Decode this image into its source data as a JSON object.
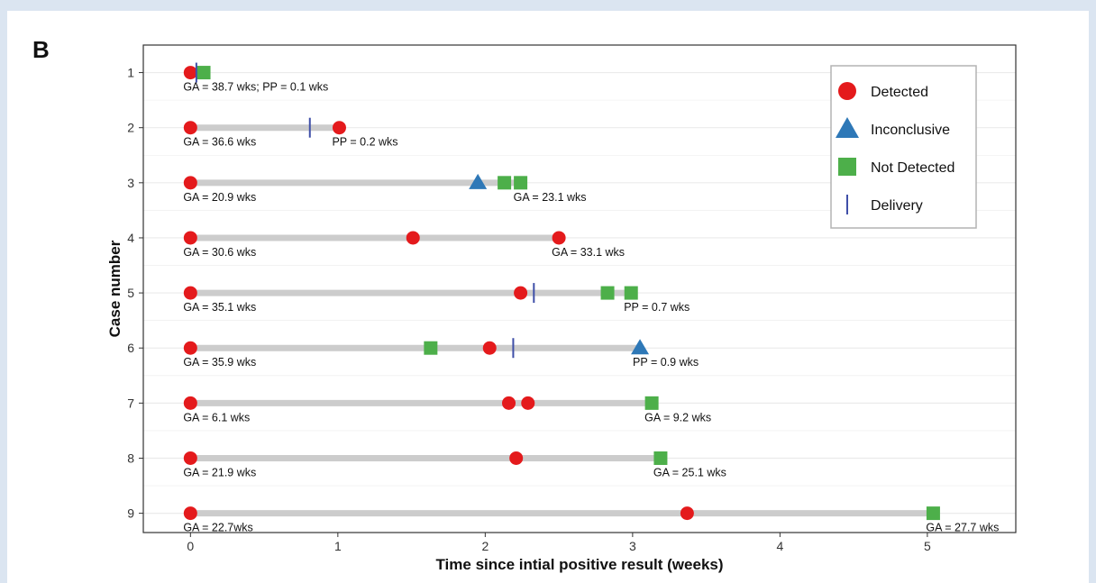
{
  "panel_label": "B",
  "chart_data": {
    "type": "scatter",
    "title": "",
    "xlabel": "Time since intial positive result (weeks)",
    "ylabel": "Case number",
    "xlim": [
      -0.32,
      5.6
    ],
    "ylim": [
      0.5,
      9.35
    ],
    "x_ticks": [
      0,
      1,
      2,
      3,
      4,
      5
    ],
    "grid": true,
    "legend_position": "top-right",
    "legend": [
      {
        "key": "Detected",
        "label": "Detected",
        "shape": "circle",
        "color": "#e41a1c"
      },
      {
        "key": "Inconclusive",
        "label": "Inconclusive",
        "shape": "triangle",
        "color": "#2e78b7"
      },
      {
        "key": "NotDetected",
        "label": "Not Detected",
        "shape": "square",
        "color": "#4daf4a"
      },
      {
        "key": "Delivery",
        "label": "Delivery",
        "shape": "vline",
        "color": "#3f4fa8"
      }
    ],
    "colors": {
      "track": "#cccccc",
      "grid": "#ebebeb",
      "axis": "#333333"
    },
    "cases": [
      {
        "case": "1",
        "span": [
          0,
          0.09
        ],
        "points": [
          {
            "x": 0,
            "result": "Detected"
          },
          {
            "x": 0.09,
            "result": "NotDetected"
          }
        ],
        "delivery": 0.04,
        "start_label": "GA = 38.7 wks;  PP = 0.1 wks",
        "end_label": ""
      },
      {
        "case": "2",
        "span": [
          0,
          1.01
        ],
        "points": [
          {
            "x": 0,
            "result": "Detected"
          },
          {
            "x": 1.01,
            "result": "Detected"
          }
        ],
        "delivery": 0.81,
        "start_label": "GA = 36.6 wks",
        "end_label": "PP = 0.2 wks"
      },
      {
        "case": "3",
        "span": [
          0,
          2.24
        ],
        "points": [
          {
            "x": 0,
            "result": "Detected"
          },
          {
            "x": 1.95,
            "result": "Inconclusive"
          },
          {
            "x": 2.13,
            "result": "NotDetected"
          },
          {
            "x": 2.24,
            "result": "NotDetected"
          }
        ],
        "delivery": null,
        "start_label": "GA = 20.9 wks",
        "end_label": "GA = 23.1 wks"
      },
      {
        "case": "4",
        "span": [
          0,
          2.5
        ],
        "points": [
          {
            "x": 0,
            "result": "Detected"
          },
          {
            "x": 1.51,
            "result": "Detected"
          },
          {
            "x": 2.5,
            "result": "Detected"
          }
        ],
        "delivery": null,
        "start_label": "GA = 30.6 wks",
        "end_label": "GA = 33.1 wks"
      },
      {
        "case": "5",
        "span": [
          0,
          2.99
        ],
        "points": [
          {
            "x": 0,
            "result": "Detected"
          },
          {
            "x": 2.24,
            "result": "Detected"
          },
          {
            "x": 2.83,
            "result": "NotDetected"
          },
          {
            "x": 2.99,
            "result": "NotDetected"
          }
        ],
        "delivery": 2.33,
        "start_label": "GA = 35.1 wks",
        "end_label": "PP = 0.7 wks"
      },
      {
        "case": "6",
        "span": [
          0,
          3.05
        ],
        "points": [
          {
            "x": 0,
            "result": "Detected"
          },
          {
            "x": 1.63,
            "result": "NotDetected"
          },
          {
            "x": 2.03,
            "result": "Detected"
          },
          {
            "x": 3.05,
            "result": "Inconclusive"
          }
        ],
        "delivery": 2.19,
        "start_label": "GA = 35.9 wks",
        "end_label": "PP = 0.9 wks"
      },
      {
        "case": "7",
        "span": [
          0,
          3.13
        ],
        "points": [
          {
            "x": 0,
            "result": "Detected"
          },
          {
            "x": 2.16,
            "result": "Detected"
          },
          {
            "x": 2.29,
            "result": "Detected"
          },
          {
            "x": 3.13,
            "result": "NotDetected"
          }
        ],
        "delivery": null,
        "start_label": "GA = 6.1 wks",
        "end_label": "GA = 9.2 wks"
      },
      {
        "case": "8",
        "span": [
          0,
          3.19
        ],
        "points": [
          {
            "x": 0,
            "result": "Detected"
          },
          {
            "x": 2.21,
            "result": "Detected"
          },
          {
            "x": 3.19,
            "result": "NotDetected"
          }
        ],
        "delivery": null,
        "start_label": "GA = 21.9 wks",
        "end_label": "GA = 25.1 wks"
      },
      {
        "case": "9",
        "span": [
          0,
          5.04
        ],
        "points": [
          {
            "x": 0,
            "result": "Detected"
          },
          {
            "x": 3.37,
            "result": "Detected"
          },
          {
            "x": 5.04,
            "result": "NotDetected"
          }
        ],
        "delivery": null,
        "start_label": "GA = 22.7wks",
        "end_label": "GA = 27.7 wks"
      }
    ]
  }
}
